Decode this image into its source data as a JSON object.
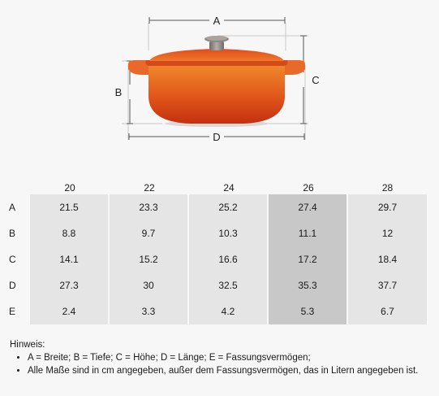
{
  "illustration": {
    "labels": {
      "a": "A",
      "b": "B",
      "c": "C",
      "d": "D"
    },
    "colors": {
      "body_top": "#f08a2b",
      "body_mid": "#e0571b",
      "body_bottom": "#c4300f",
      "lid": "#e86a25",
      "knob": "#8c8784",
      "shadow": "#d9d9d9"
    }
  },
  "table": {
    "columns": [
      "20",
      "22",
      "24",
      "26",
      "28"
    ],
    "highlight_column": "26",
    "rows": [
      {
        "label": "A",
        "values": [
          "21.5",
          "23.3",
          "25.2",
          "27.4",
          "29.7"
        ]
      },
      {
        "label": "B",
        "values": [
          "8.8",
          "9.7",
          "10.3",
          "11.1",
          "12"
        ]
      },
      {
        "label": "C",
        "values": [
          "14.1",
          "15.2",
          "16.6",
          "17.2",
          "18.4"
        ]
      },
      {
        "label": "D",
        "values": [
          "27.3",
          "30",
          "32.5",
          "35.3",
          "37.7"
        ]
      },
      {
        "label": "E",
        "values": [
          "2.4",
          "3.3",
          "4.2",
          "5.3",
          "6.7"
        ]
      }
    ]
  },
  "notes": {
    "title": "Hinweis:",
    "items": [
      "A = Breite; B = Tiefe; C = Höhe; D = Länge; E = Fassungsvermögen;",
      "Alle Maße sind in cm angegeben, außer dem Fassungsvermögen, das in Litern angegeben ist."
    ]
  }
}
